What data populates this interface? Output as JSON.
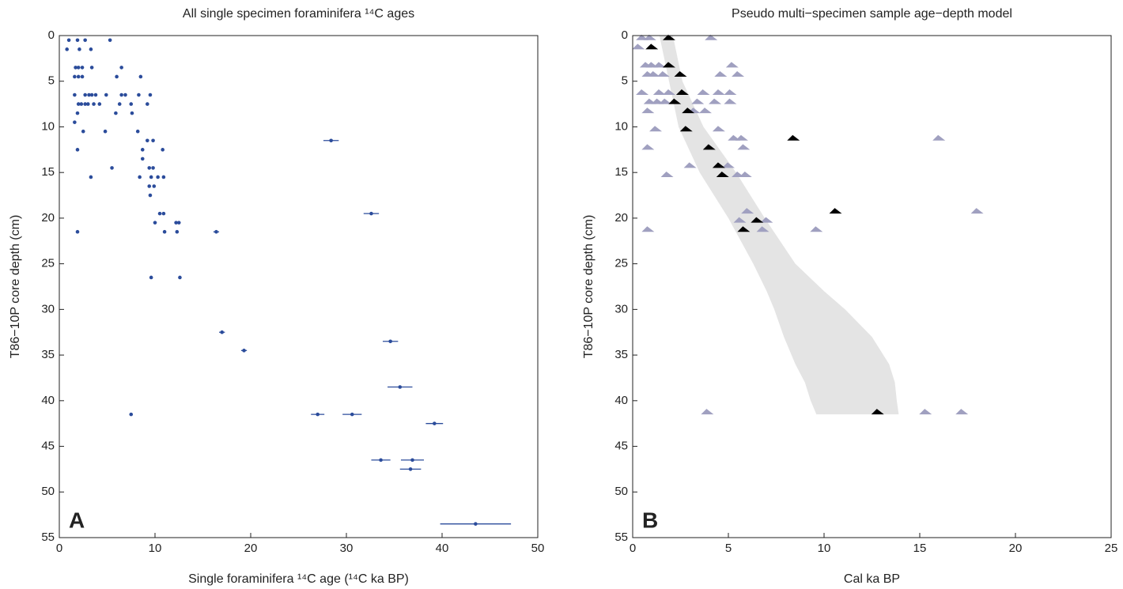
{
  "chart_data": [
    {
      "type": "scatter",
      "title": "All single specimen foraminifera ¹⁴C ages",
      "xlabel": "Single foraminifera ¹⁴C age (¹⁴C ka BP)",
      "ylabel": "T86−10P core depth (cm)",
      "panel_label": "A",
      "color": "#2b4c9b",
      "x": [
        1.0,
        1.9,
        2.7,
        5.3,
        0.8,
        2.1,
        3.3,
        1.7,
        2.0,
        2.4,
        3.4,
        6.5,
        1.6,
        2.0,
        2.4,
        6.0,
        8.5,
        1.6,
        2.7,
        3.1,
        3.4,
        3.8,
        4.9,
        6.5,
        6.9,
        8.3,
        9.5,
        2.0,
        2.3,
        2.7,
        3.0,
        3.6,
        4.2,
        6.3,
        7.5,
        9.2,
        1.9,
        5.9,
        7.6,
        1.6,
        2.5,
        4.8,
        8.2,
        28.4,
        9.2,
        9.8,
        1.9,
        8.7,
        10.8,
        8.7,
        5.5,
        9.4,
        9.8,
        3.3,
        8.4,
        9.6,
        10.3,
        10.9,
        9.4,
        9.9,
        9.5,
        10.5,
        10.9,
        32.6,
        10.0,
        12.2,
        12.5,
        1.9,
        11.0,
        12.3,
        16.4,
        9.6,
        12.6,
        17.0,
        34.6,
        19.3,
        35.6,
        7.5,
        27.0,
        30.6,
        39.2,
        33.6,
        36.9,
        36.7,
        43.5
      ],
      "y": [
        0.5,
        0.5,
        0.5,
        0.5,
        1.5,
        1.5,
        1.5,
        3.5,
        3.5,
        3.5,
        3.5,
        3.5,
        4.5,
        4.5,
        4.5,
        4.5,
        4.5,
        6.5,
        6.5,
        6.5,
        6.5,
        6.5,
        6.5,
        6.5,
        6.5,
        6.5,
        6.5,
        7.5,
        7.5,
        7.5,
        7.5,
        7.5,
        7.5,
        7.5,
        7.5,
        7.5,
        8.5,
        8.5,
        8.5,
        9.5,
        10.5,
        10.5,
        10.5,
        11.5,
        11.5,
        11.5,
        12.5,
        12.5,
        12.5,
        13.5,
        14.5,
        14.5,
        14.5,
        15.5,
        15.5,
        15.5,
        15.5,
        15.5,
        16.5,
        16.5,
        17.5,
        19.5,
        19.5,
        19.5,
        20.5,
        20.5,
        20.5,
        21.5,
        21.5,
        21.5,
        21.5,
        26.5,
        26.5,
        32.5,
        33.5,
        34.5,
        38.5,
        41.5,
        41.5,
        41.5,
        42.5,
        46.5,
        46.5,
        47.5,
        53.5
      ],
      "xerr": [
        0.1,
        0.1,
        0.1,
        0.1,
        0.1,
        0.1,
        0.1,
        0.1,
        0.1,
        0.1,
        0.1,
        0.1,
        0.1,
        0.1,
        0.1,
        0.1,
        0.1,
        0.1,
        0.1,
        0.1,
        0.1,
        0.1,
        0.1,
        0.1,
        0.1,
        0.1,
        0.1,
        0.1,
        0.1,
        0.1,
        0.1,
        0.1,
        0.1,
        0.1,
        0.1,
        0.1,
        0.1,
        0.1,
        0.1,
        0.1,
        0.1,
        0.1,
        0.1,
        0.8,
        0.1,
        0.1,
        0.1,
        0.1,
        0.1,
        0.1,
        0.1,
        0.1,
        0.1,
        0.1,
        0.1,
        0.1,
        0.1,
        0.1,
        0.1,
        0.1,
        0.1,
        0.1,
        0.1,
        0.8,
        0.1,
        0.1,
        0.1,
        0.1,
        0.1,
        0.1,
        0.3,
        0.1,
        0.1,
        0.3,
        0.8,
        0.3,
        1.3,
        0.1,
        0.7,
        1.0,
        0.9,
        1.0,
        1.2,
        1.1,
        3.7
      ],
      "xlim": [
        0,
        50
      ],
      "ylim": [
        55,
        0
      ],
      "xticks": [
        0,
        10,
        20,
        30,
        40,
        50
      ],
      "yticks": [
        0,
        5,
        10,
        15,
        20,
        25,
        30,
        35,
        40,
        45,
        50,
        55
      ]
    },
    {
      "type": "agedepth",
      "title": "Pseudo multi−specimen sample age−depth model",
      "xlabel": "Cal ka BP",
      "ylabel": "T86−10P core depth (cm)",
      "panel_label": "B",
      "band": {
        "color": "#e4e4e4",
        "depth": [
          0,
          5,
          10,
          15,
          20,
          25,
          28,
          30,
          33,
          36,
          38,
          40,
          41.5
        ],
        "min_age": [
          1.4,
          1.9,
          2.4,
          3.5,
          5.0,
          6.3,
          7.0,
          7.4,
          7.9,
          8.5,
          9.0,
          9.3,
          9.6
        ],
        "max_age": [
          2.1,
          2.6,
          3.7,
          5.4,
          6.9,
          8.5,
          10.0,
          11.1,
          12.5,
          13.4,
          13.7,
          13.8,
          13.9
        ]
      },
      "triangles": [
        {
          "color": "#a0a0c0",
          "x": [
            0.5,
            0.9,
            4.1,
            0.3,
            0.7,
            1.0,
            1.4,
            5.2,
            0.8,
            1.1,
            1.6,
            4.6,
            5.5,
            0.5,
            1.4,
            1.9,
            3.7,
            4.5,
            5.1,
            0.9,
            1.3,
            1.7,
            3.4,
            4.3,
            5.1,
            0.8,
            3.2,
            3.8,
            1.2,
            4.5,
            5.3,
            5.7,
            16.0,
            0.8,
            5.8,
            3.0,
            5.0,
            1.8,
            5.5,
            5.9,
            6.0,
            18.0,
            5.6,
            7.0,
            0.8,
            6.8,
            9.6,
            3.9,
            15.3,
            17.2
          ],
          "y": [
            0.5,
            0.5,
            0.5,
            1.5,
            3.5,
            3.5,
            3.5,
            3.5,
            4.5,
            4.5,
            4.5,
            4.5,
            4.5,
            6.5,
            6.5,
            6.5,
            6.5,
            6.5,
            6.5,
            7.5,
            7.5,
            7.5,
            7.5,
            7.5,
            7.5,
            8.5,
            8.5,
            8.5,
            10.5,
            10.5,
            11.5,
            11.5,
            11.5,
            12.5,
            12.5,
            14.5,
            14.5,
            15.5,
            15.5,
            15.5,
            19.5,
            19.5,
            20.5,
            20.5,
            21.5,
            21.5,
            21.5,
            41.5,
            41.5,
            41.5
          ]
        },
        {
          "color": "#000000",
          "x": [
            1.9,
            1.0,
            1.9,
            2.5,
            2.6,
            2.2,
            2.9,
            2.8,
            8.4,
            4.0,
            4.5,
            4.7,
            10.6,
            6.5,
            5.8,
            12.8
          ],
          "y": [
            0.5,
            1.5,
            3.5,
            4.5,
            6.5,
            7.5,
            8.5,
            10.5,
            11.5,
            12.5,
            14.5,
            15.5,
            19.5,
            20.5,
            21.5,
            41.5
          ]
        }
      ],
      "xlim": [
        0,
        25
      ],
      "ylim": [
        55,
        0
      ],
      "xticks": [
        0,
        5,
        10,
        15,
        20,
        25
      ],
      "yticks": [
        0,
        5,
        10,
        15,
        20,
        25,
        30,
        35,
        40,
        45,
        50,
        55
      ]
    }
  ]
}
